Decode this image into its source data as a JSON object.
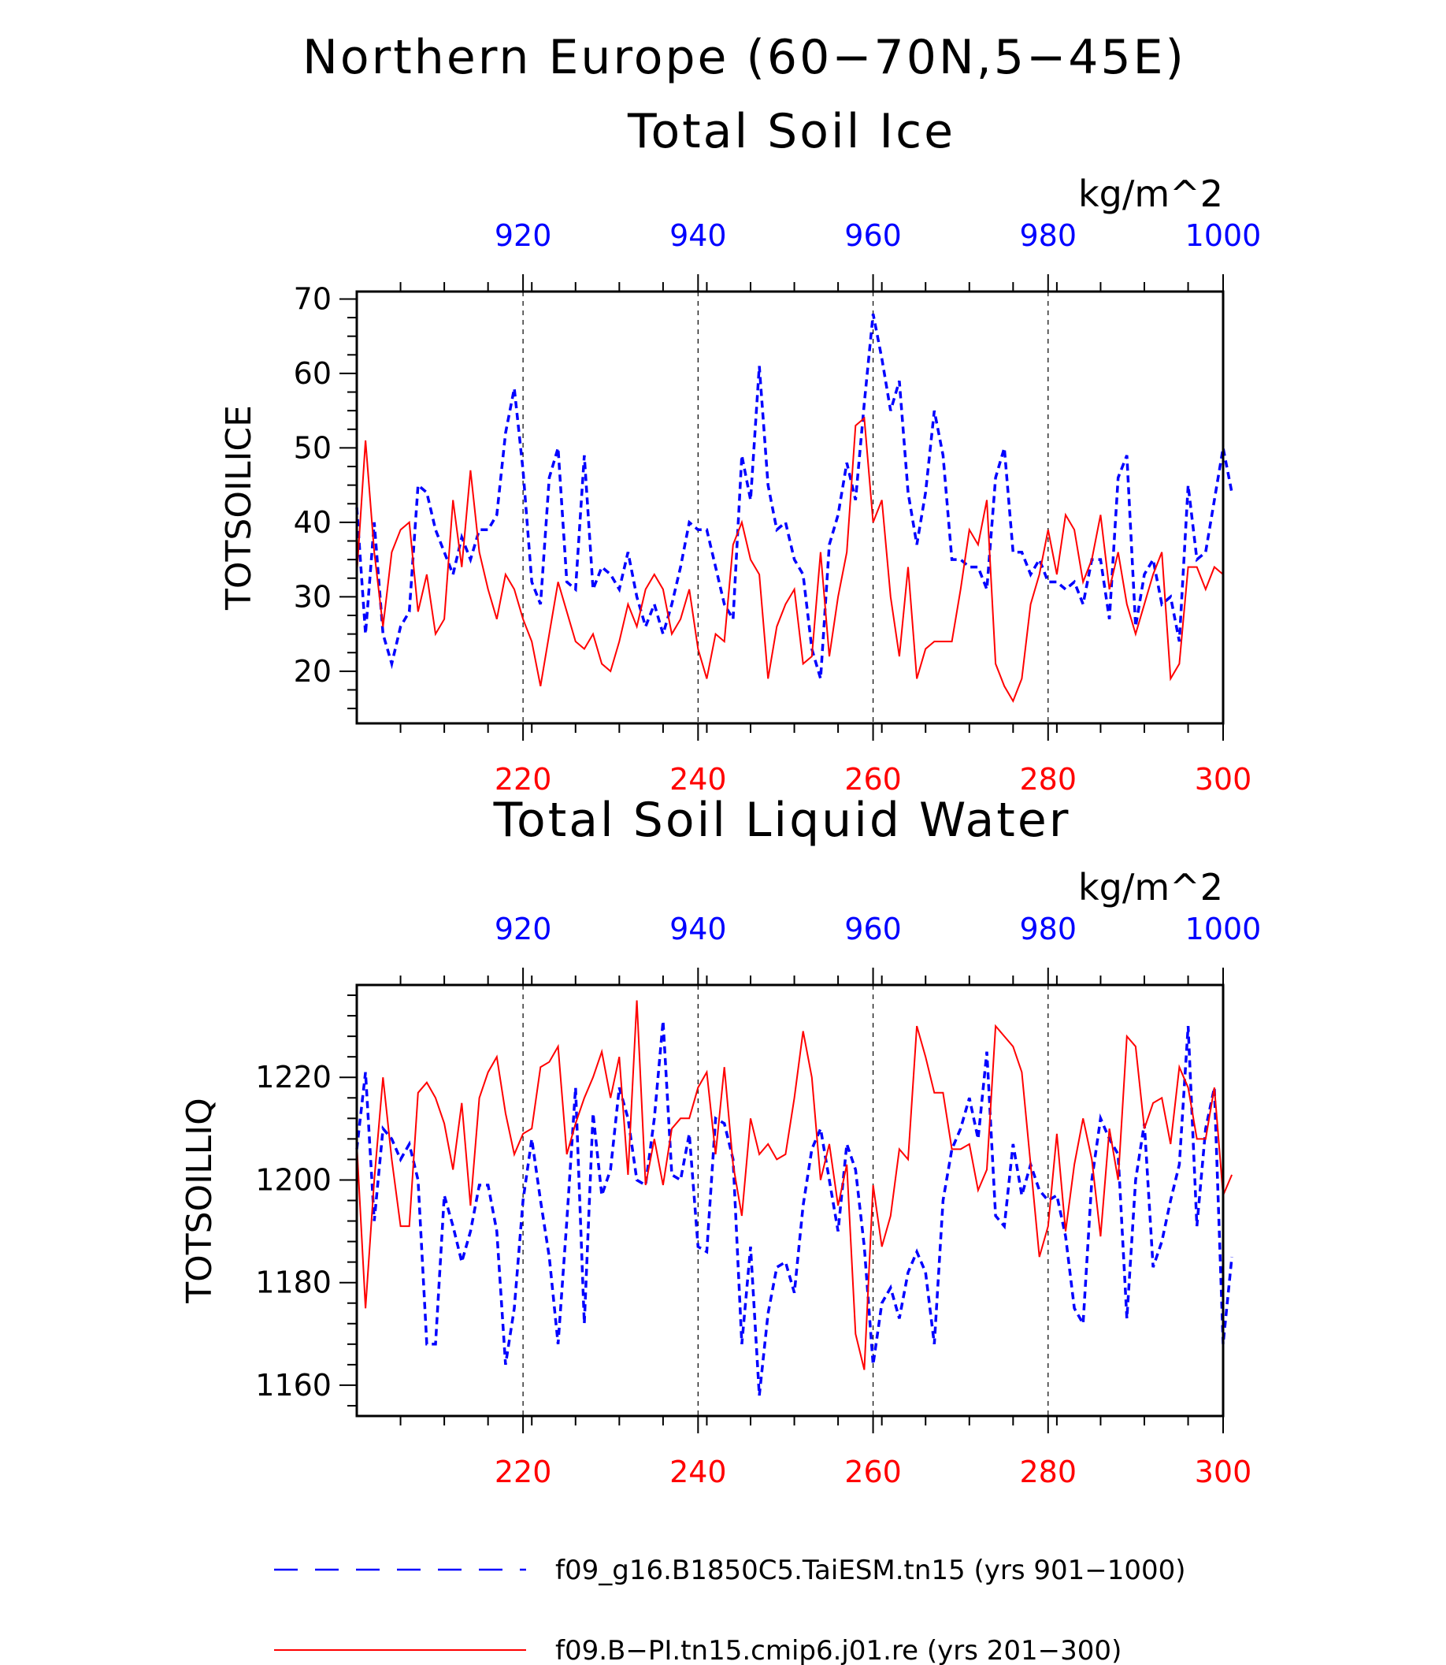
{
  "figure": {
    "title_line1": "Northern Europe (60−70N,5−45E)",
    "colors": {
      "model_a": "#0000ff",
      "model_b": "#ff0000",
      "axis": "#000000"
    }
  },
  "legend": {
    "items": [
      {
        "label": "f09_g16.B1850C5.TaiESM.tn15 (yrs 901−1000)",
        "color": "#0000ff",
        "style": "dashed"
      },
      {
        "label": "f09.B−PI.tn15.cmip6.j01.re (yrs 201−300)",
        "color": "#ff0000",
        "style": "solid"
      }
    ]
  },
  "chart_data": [
    {
      "type": "line",
      "title": "Total Soil Ice",
      "ylabel": "TOTSOILICE",
      "units": "kg/m^2",
      "ylim": [
        13,
        71
      ],
      "yticks": [
        20,
        30,
        40,
        50,
        60,
        70
      ],
      "grid": "vertical dashed at labelled ticks",
      "bottom_axis": {
        "range": [
          201,
          300
        ],
        "ticks": [
          220,
          240,
          260,
          280,
          300
        ]
      },
      "top_axis": {
        "range": [
          901,
          1000
        ],
        "ticks": [
          920,
          940,
          960,
          980,
          1000
        ]
      },
      "series": [
        {
          "name": "f09_g16.B1850C5.TaiESM.tn15 (yrs 901−1000)",
          "axis": "top",
          "color": "#0000ff",
          "style": "dashed",
          "x_start": 901,
          "values": [
            42,
            25,
            40,
            25,
            21,
            26,
            28,
            45,
            44,
            39,
            36,
            33,
            38,
            35,
            39,
            39,
            41,
            52,
            58,
            47,
            32,
            29,
            46,
            50,
            32,
            31,
            49,
            31,
            34,
            33,
            31,
            36,
            30,
            26,
            29,
            25,
            29,
            34,
            40,
            39,
            39,
            34,
            29,
            27,
            49,
            43,
            61,
            45,
            39,
            40,
            35,
            33,
            23,
            19,
            37,
            41,
            48,
            43,
            56,
            68,
            62,
            55,
            59,
            44,
            37,
            44,
            55,
            49,
            35,
            35,
            34,
            34,
            31,
            46,
            50,
            36,
            36,
            33,
            35,
            32,
            32,
            31,
            32,
            29,
            35,
            35,
            27,
            46,
            49,
            26,
            33,
            35,
            29,
            30,
            24,
            45,
            35,
            36,
            43,
            50,
            44
          ]
        },
        {
          "name": "f09.B−PI.tn15.cmip6.j01.re (yrs 201−300)",
          "axis": "bottom",
          "color": "#ff0000",
          "style": "solid",
          "x_start": 201,
          "values": [
            33,
            51,
            36,
            26,
            36,
            39,
            40,
            28,
            33,
            25,
            27,
            43,
            34,
            47,
            36,
            31,
            27,
            33,
            31,
            27,
            24,
            18,
            25,
            32,
            28,
            24,
            23,
            25,
            21,
            20,
            24,
            29,
            26,
            31,
            33,
            31,
            25,
            27,
            31,
            23,
            19,
            25,
            24,
            37,
            40,
            35,
            33,
            19,
            26,
            29,
            31,
            21,
            22,
            36,
            22,
            30,
            36,
            53,
            54,
            40,
            43,
            30,
            22,
            34,
            19,
            23,
            24,
            24,
            24,
            31,
            39,
            37,
            43,
            21,
            18,
            16,
            19,
            29,
            33,
            39,
            33,
            41,
            39,
            32,
            35,
            41,
            31,
            36,
            29,
            25,
            29,
            33,
            36,
            19,
            21,
            34,
            34,
            31,
            34,
            33
          ]
        }
      ]
    },
    {
      "type": "line",
      "title": "Total Soil Liquid Water",
      "ylabel": "TOTSOILLIQ",
      "units": "kg/m^2",
      "ylim": [
        1154,
        1238
      ],
      "yticks": [
        1160,
        1180,
        1200,
        1220
      ],
      "grid": "vertical dashed at labelled ticks",
      "bottom_axis": {
        "range": [
          201,
          300
        ],
        "ticks": [
          220,
          240,
          260,
          280,
          300
        ]
      },
      "top_axis": {
        "range": [
          901,
          1000
        ],
        "ticks": [
          920,
          940,
          960,
          980,
          1000
        ]
      },
      "series": [
        {
          "name": "f09_g16.B1850C5.TaiESM.tn15 (yrs 901−1000)",
          "axis": "top",
          "color": "#0000ff",
          "style": "dashed",
          "x_start": 901,
          "values": [
            1206,
            1221,
            1192,
            1210,
            1208,
            1204,
            1207,
            1200,
            1168,
            1168,
            1197,
            1191,
            1184,
            1190,
            1199,
            1199,
            1190,
            1164,
            1175,
            1196,
            1208,
            1196,
            1185,
            1168,
            1192,
            1218,
            1172,
            1213,
            1197,
            1202,
            1218,
            1212,
            1200,
            1199,
            1212,
            1231,
            1201,
            1200,
            1209,
            1187,
            1186,
            1212,
            1211,
            1204,
            1168,
            1187,
            1158,
            1174,
            1183,
            1184,
            1178,
            1195,
            1206,
            1210,
            1200,
            1190,
            1207,
            1202,
            1187,
            1164,
            1176,
            1179,
            1173,
            1182,
            1186,
            1182,
            1168,
            1196,
            1206,
            1210,
            1216,
            1208,
            1225,
            1193,
            1191,
            1207,
            1197,
            1203,
            1198,
            1196,
            1197,
            1189,
            1175,
            1172,
            1200,
            1212,
            1208,
            1205,
            1173,
            1200,
            1211,
            1183,
            1188,
            1196,
            1203,
            1230,
            1191,
            1210,
            1218,
            1168,
            1185
          ]
        },
        {
          "name": "f09.B−PI.tn15.cmip6.j01.re (yrs 201−300)",
          "axis": "bottom",
          "color": "#ff0000",
          "style": "solid",
          "x_start": 201,
          "values": [
            1207,
            1175,
            1200,
            1220,
            1204,
            1191,
            1191,
            1217,
            1219,
            1216,
            1211,
            1202,
            1215,
            1195,
            1216,
            1221,
            1224,
            1213,
            1205,
            1209,
            1210,
            1222,
            1223,
            1226,
            1205,
            1211,
            1216,
            1220,
            1225,
            1216,
            1224,
            1201,
            1235,
            1199,
            1208,
            1199,
            1210,
            1212,
            1212,
            1218,
            1221,
            1205,
            1222,
            1203,
            1193,
            1212,
            1205,
            1207,
            1204,
            1205,
            1216,
            1229,
            1220,
            1200,
            1207,
            1195,
            1203,
            1170,
            1163,
            1199,
            1187,
            1193,
            1206,
            1204,
            1230,
            1224,
            1217,
            1217,
            1206,
            1206,
            1207,
            1198,
            1202,
            1230,
            1228,
            1226,
            1221,
            1203,
            1185,
            1191,
            1209,
            1190,
            1203,
            1212,
            1204,
            1189,
            1210,
            1200,
            1228,
            1226,
            1210,
            1215,
            1216,
            1207,
            1222,
            1218,
            1208,
            1208,
            1218,
            1197,
            1201
          ]
        }
      ]
    }
  ]
}
